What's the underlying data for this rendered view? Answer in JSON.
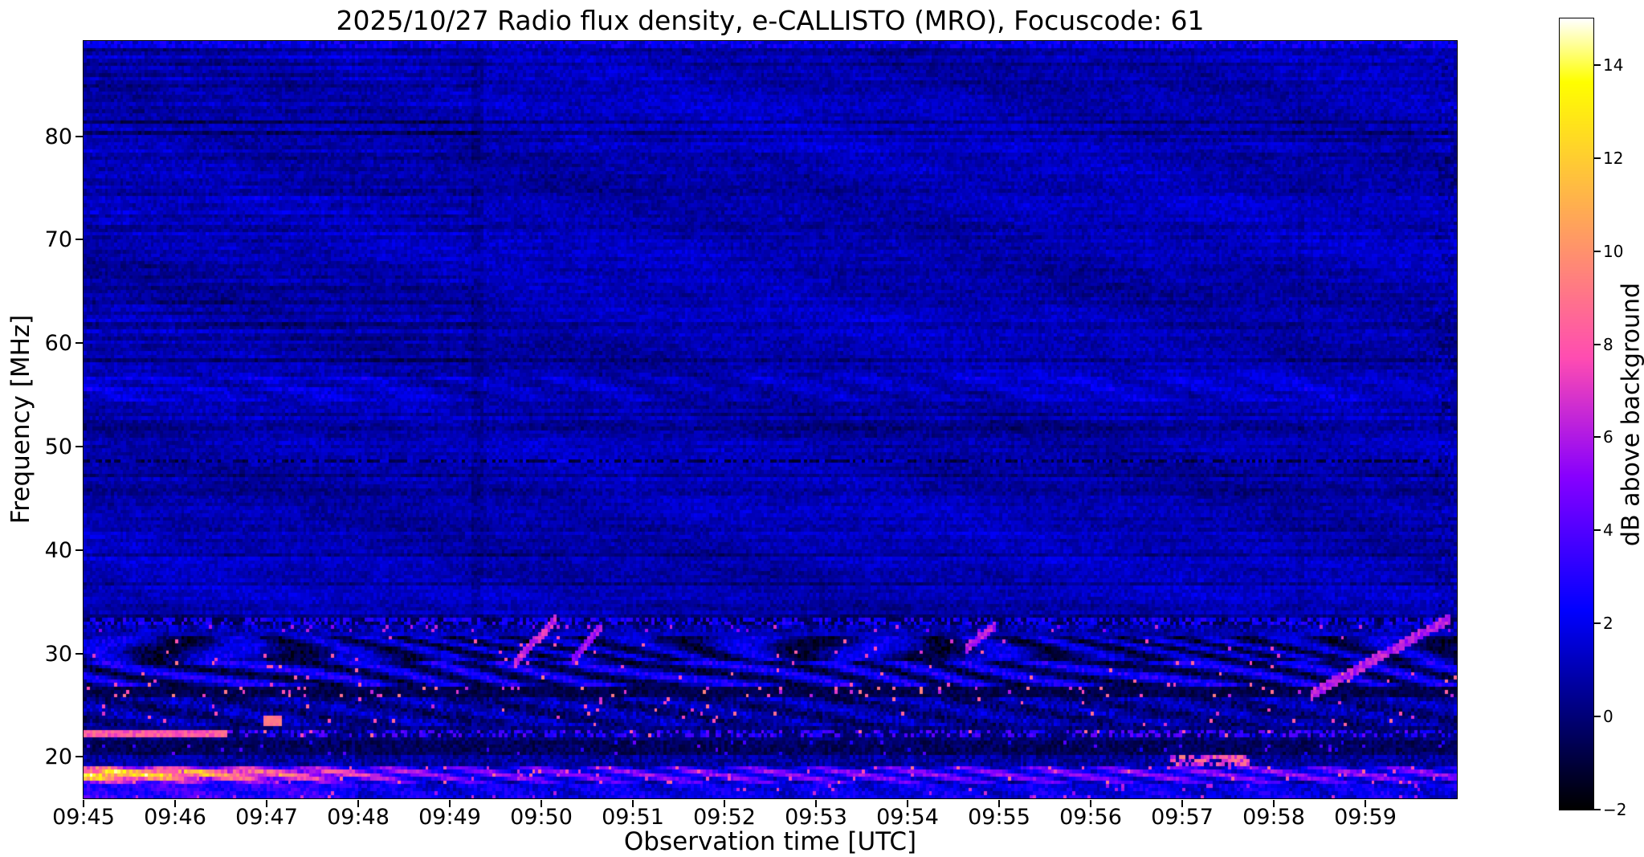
{
  "figure": {
    "background_color": "#ffffff"
  },
  "chart_data": {
    "type": "heatmap",
    "title": "2025/10/27  Radio flux density, e-CALLISTO (MRO), Focuscode: 61",
    "xlabel": "Observation time [UTC]",
    "ylabel": "Frequency [MHz]",
    "x_tick_labels": [
      "09:45",
      "09:46",
      "09:47",
      "09:48",
      "09:49",
      "09:50",
      "09:51",
      "09:52",
      "09:53",
      "09:54",
      "09:55",
      "09:56",
      "09:57",
      "09:58",
      "09:59"
    ],
    "x_tick_minutes": [
      0,
      1,
      2,
      3,
      4,
      5,
      6,
      7,
      8,
      9,
      10,
      11,
      12,
      13,
      14
    ],
    "x_range_minutes": [
      0,
      15
    ],
    "y_tick_labels": [
      "20",
      "30",
      "40",
      "50",
      "60",
      "70",
      "80"
    ],
    "y_tick_values": [
      20,
      30,
      40,
      50,
      60,
      70,
      80
    ],
    "y_range_mhz": [
      16.0,
      89.2
    ],
    "grid": false,
    "legend": "none",
    "background_level_db": 0.9,
    "colorbar": {
      "label": "dB above background",
      "tick_labels": [
        "−2",
        "0",
        "2",
        "4",
        "6",
        "8",
        "10",
        "12",
        "14"
      ],
      "tick_values": [
        -2,
        0,
        2,
        4,
        6,
        8,
        10,
        12,
        14
      ],
      "vmin": -2,
      "vmax": 15,
      "colormap": "gnuplot2",
      "colormap_stops": [
        {
          "x": 0.0,
          "color": "#000000"
        },
        {
          "x": 0.125,
          "color": "#000080"
        },
        {
          "x": 0.25,
          "color": "#0000ff"
        },
        {
          "x": 0.4,
          "color": "#7800ff"
        },
        {
          "x": 0.55,
          "color": "#f042bd"
        },
        {
          "x": 0.7,
          "color": "#ff8f70"
        },
        {
          "x": 0.85,
          "color": "#ffdb24"
        },
        {
          "x": 1.0,
          "color": "#ffffff"
        }
      ]
    },
    "bursts": [
      {
        "t0_min": 4.7,
        "t1_min": 5.15,
        "f0_mhz": 29.0,
        "f1_mhz": 33.2,
        "db": 5.5
      },
      {
        "t0_min": 5.35,
        "t1_min": 5.65,
        "f0_mhz": 29.5,
        "f1_mhz": 32.4,
        "db": 4.5
      },
      {
        "t0_min": 9.65,
        "t1_min": 9.95,
        "f0_mhz": 30.5,
        "f1_mhz": 32.6,
        "db": 5.0
      },
      {
        "t0_min": 13.4,
        "t1_min": 14.93,
        "f0_mhz": 26.0,
        "f1_mhz": 33.4,
        "db": 5.0
      }
    ],
    "features": [
      {
        "kind": "quiet-background",
        "freq_mhz": [
          33.5,
          89.2
        ],
        "time_min": [
          0,
          15
        ],
        "level_db": 1,
        "description": "mottled dark-blue background with horizontal channel striping"
      },
      {
        "kind": "rfi-line",
        "freq_mhz": 48.6,
        "style": "dark-dotted",
        "level_db": -1.5
      },
      {
        "kind": "band",
        "freq_mhz": [
          54.5,
          57.3
        ],
        "level_db": 1.5,
        "description": "faint wavy enhancement"
      },
      {
        "kind": "rfi-line",
        "freq_mhz": 33.15,
        "style": "dark-dotted"
      },
      {
        "kind": "rfi-line",
        "freq_mhz": 32.35,
        "style": "bright-dotted",
        "level_db": 4
      },
      {
        "kind": "band",
        "freq_mhz": [
          26.7,
          31.6
        ],
        "level_db": [
          -2,
          7
        ],
        "description": "strong wavy interference arcs, bright blue with black gaps"
      },
      {
        "kind": "band",
        "freq_mhz": [
          25.6,
          26.7
        ],
        "level_db": [
          -2,
          9
        ],
        "description": "dark lane with scattered magenta speckles"
      },
      {
        "kind": "band",
        "freq_mhz": [
          21.9,
          22.4
        ],
        "level_db": [
          2,
          9
        ],
        "description": "intermittent bright line, pink at 09:45-09:46"
      },
      {
        "kind": "band",
        "freq_mhz": [
          17.4,
          19.3
        ],
        "level_db": [
          3,
          12
        ],
        "description": "bright band, strongest orange 09:45-09:47 then fading"
      },
      {
        "kind": "hot-spot",
        "time_min": [
          11.85,
          12.75
        ],
        "freq_mhz": [
          19.0,
          20.6
        ],
        "level_db": 9,
        "description": "bright pink patch near 09:57"
      },
      {
        "kind": "vertical-seam",
        "time_min": 4.3,
        "description": "faint darker column"
      },
      {
        "kind": "vertical-seam",
        "time_min": 14.8,
        "description": "darker noisy column at right edge"
      }
    ]
  }
}
